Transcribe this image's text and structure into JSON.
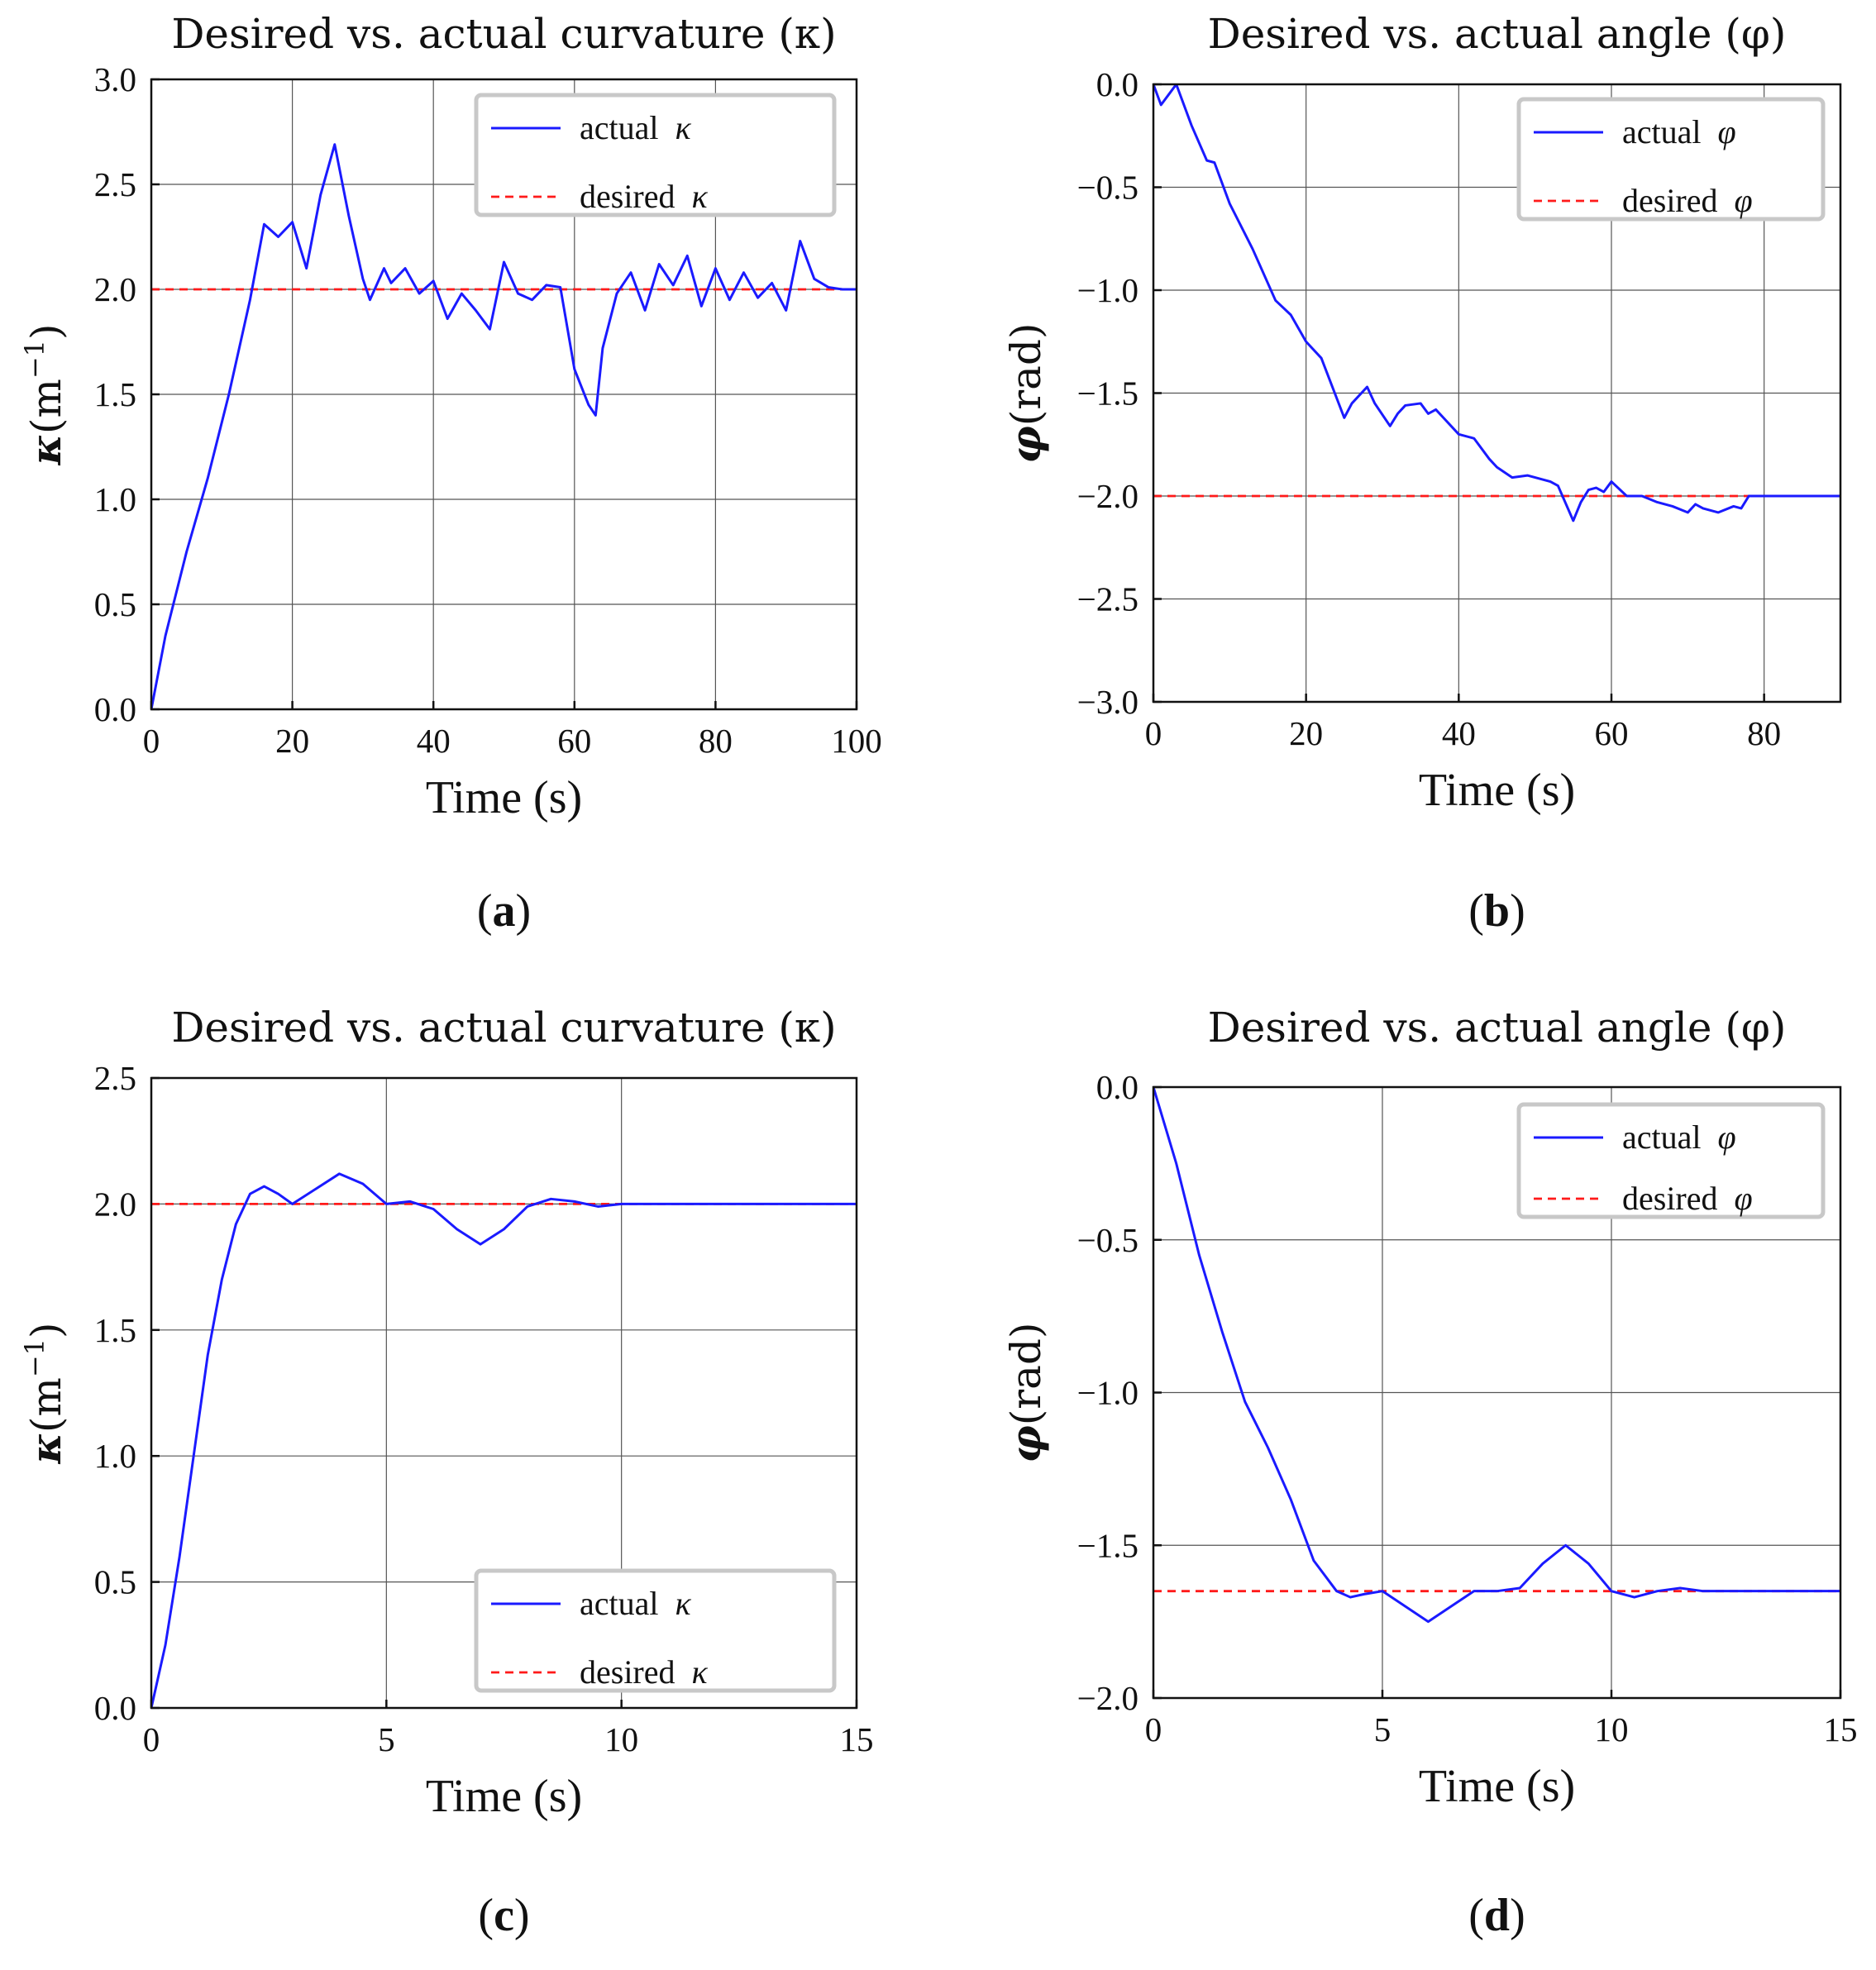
{
  "chart_data": [
    {
      "id": "a",
      "type": "line",
      "caption": "a",
      "title": "Desired vs. actual curvature (κ)",
      "xlabel": "Time (s)",
      "ylabel_symbol": "κ",
      "ylabel_unit": "(m",
      "ylabel_sup": "−1",
      "ylabel_close": ")",
      "xlim": [
        0,
        100
      ],
      "ylim": [
        0.0,
        3.0
      ],
      "xticks": [
        0,
        20,
        40,
        60,
        80,
        100
      ],
      "xtick_labels": [
        "0",
        "20",
        "40",
        "60",
        "80",
        "100"
      ],
      "yticks": [
        0.0,
        0.5,
        1.0,
        1.5,
        2.0,
        2.5,
        3.0
      ],
      "ytick_labels": [
        "0.0",
        "0.5",
        "1.0",
        "1.5",
        "2.0",
        "2.5",
        "3.0"
      ],
      "grid": true,
      "legend": {
        "position": "top-right",
        "entries": [
          {
            "label": "actual ",
            "symbol": "κ"
          },
          {
            "label": "desired ",
            "symbol": "κ"
          }
        ]
      },
      "series": [
        {
          "name": "actual κ",
          "x": [
            0,
            2,
            5,
            8,
            11,
            14,
            16,
            18,
            20,
            22,
            24,
            26,
            28,
            30,
            31,
            33,
            34,
            36,
            38,
            40,
            42,
            44,
            46,
            48,
            50,
            52,
            54,
            56,
            58,
            60,
            62,
            63,
            64,
            66,
            68,
            70,
            72,
            74,
            76,
            78,
            80,
            82,
            84,
            86,
            88,
            90,
            92,
            94,
            96,
            98,
            100
          ],
          "y": [
            0.0,
            0.35,
            0.75,
            1.1,
            1.5,
            1.95,
            2.31,
            2.25,
            2.32,
            2.1,
            2.45,
            2.69,
            2.35,
            2.05,
            1.95,
            2.1,
            2.03,
            2.1,
            1.98,
            2.04,
            1.86,
            1.98,
            1.9,
            1.81,
            2.13,
            1.98,
            1.95,
            2.02,
            2.01,
            1.62,
            1.45,
            1.4,
            1.72,
            1.98,
            2.08,
            1.9,
            2.12,
            2.02,
            2.16,
            1.92,
            2.1,
            1.95,
            2.08,
            1.96,
            2.03,
            1.9,
            2.23,
            2.05,
            2.01,
            2.0,
            2.0
          ]
        },
        {
          "name": "desired κ",
          "x": [
            0,
            100
          ],
          "y": [
            2.0,
            2.0
          ]
        }
      ]
    },
    {
      "id": "b",
      "type": "line",
      "caption": "b",
      "title": "Desired vs. actual angle (φ)",
      "xlabel": "Time (s)",
      "ylabel_symbol": "φ",
      "ylabel_unit": "(rad)",
      "xlim": [
        0,
        90
      ],
      "ylim": [
        -3.0,
        0.0
      ],
      "xticks": [
        0,
        20,
        40,
        60,
        80
      ],
      "xtick_labels": [
        "0",
        "20",
        "40",
        "60",
        "80"
      ],
      "yticks": [
        0.0,
        -0.5,
        -1.0,
        -1.5,
        -2.0,
        -2.5,
        -3.0
      ],
      "ytick_labels": [
        "0.0",
        "−0.5",
        "−1.0",
        "−1.5",
        "−2.0",
        "−2.5",
        "−3.0"
      ],
      "grid": true,
      "legend": {
        "position": "top-right",
        "entries": [
          {
            "label": "actual ",
            "symbol": "φ"
          },
          {
            "label": "desired ",
            "symbol": "φ"
          }
        ]
      },
      "series": [
        {
          "name": "actual φ",
          "x": [
            0,
            1,
            2,
            3,
            5,
            7,
            8,
            10,
            13,
            16,
            18,
            20,
            22,
            25,
            26,
            28,
            29,
            31,
            32,
            33,
            35,
            36,
            37,
            38,
            40,
            42,
            44,
            45,
            47,
            49,
            51,
            52,
            53,
            55,
            56,
            57,
            58,
            59,
            60,
            62,
            64,
            66,
            68,
            70,
            71,
            72,
            74,
            76,
            77,
            78,
            80,
            85,
            90
          ],
          "y": [
            0.0,
            -0.1,
            -0.05,
            0.0,
            -0.2,
            -0.37,
            -0.38,
            -0.58,
            -0.8,
            -1.05,
            -1.12,
            -1.25,
            -1.33,
            -1.62,
            -1.55,
            -1.47,
            -1.55,
            -1.66,
            -1.6,
            -1.56,
            -1.55,
            -1.6,
            -1.58,
            -1.62,
            -1.7,
            -1.72,
            -1.82,
            -1.86,
            -1.91,
            -1.9,
            -1.92,
            -1.93,
            -1.95,
            -2.12,
            -2.03,
            -1.97,
            -1.96,
            -1.98,
            -1.93,
            -2.0,
            -2.0,
            -2.03,
            -2.05,
            -2.08,
            -2.04,
            -2.06,
            -2.08,
            -2.05,
            -2.06,
            -2.0,
            -2.0,
            -2.0,
            -2.0
          ]
        },
        {
          "name": "desired φ",
          "x": [
            0,
            90
          ],
          "y": [
            -2.0,
            -2.0
          ]
        }
      ]
    },
    {
      "id": "c",
      "type": "line",
      "caption": "c",
      "title": "Desired vs. actual curvature (κ)",
      "xlabel": "Time (s)",
      "ylabel_symbol": "κ",
      "ylabel_unit": "(m",
      "ylabel_sup": "−1",
      "ylabel_close": ")",
      "xlim": [
        0,
        15
      ],
      "ylim": [
        0.0,
        2.5
      ],
      "xticks": [
        0,
        5,
        10,
        15
      ],
      "xtick_labels": [
        "0",
        "5",
        "10",
        "15"
      ],
      "yticks": [
        0.0,
        0.5,
        1.0,
        1.5,
        2.0,
        2.5
      ],
      "ytick_labels": [
        "0.0",
        "0.5",
        "1.0",
        "1.5",
        "2.0",
        "2.5"
      ],
      "grid": true,
      "legend": {
        "position": "bottom-right",
        "entries": [
          {
            "label": "actual ",
            "symbol": "κ"
          },
          {
            "label": "desired ",
            "symbol": "κ"
          }
        ]
      },
      "series": [
        {
          "name": "actual κ",
          "x": [
            0,
            0.3,
            0.6,
            0.9,
            1.2,
            1.5,
            1.8,
            2.1,
            2.4,
            2.7,
            3.0,
            3.5,
            4.0,
            4.5,
            5.0,
            5.5,
            6.0,
            6.5,
            7.0,
            7.5,
            8.0,
            8.5,
            9.0,
            9.5,
            10.0,
            11,
            12,
            13,
            14,
            15
          ],
          "y": [
            0.0,
            0.25,
            0.6,
            1.0,
            1.4,
            1.7,
            1.92,
            2.04,
            2.07,
            2.04,
            2.0,
            2.06,
            2.12,
            2.08,
            2.0,
            2.01,
            1.98,
            1.9,
            1.84,
            1.9,
            1.99,
            2.02,
            2.01,
            1.99,
            2.0,
            2.0,
            2.0,
            2.0,
            2.0,
            2.0
          ]
        },
        {
          "name": "desired κ",
          "x": [
            0,
            15
          ],
          "y": [
            2.0,
            2.0
          ]
        }
      ]
    },
    {
      "id": "d",
      "type": "line",
      "caption": "d",
      "title": "Desired vs. actual angle (φ)",
      "xlabel": "Time (s)",
      "ylabel_symbol": "φ",
      "ylabel_unit": "(rad)",
      "xlim": [
        0,
        15
      ],
      "ylim": [
        -2.0,
        0.0
      ],
      "xticks": [
        0,
        5,
        10,
        15
      ],
      "xtick_labels": [
        "0",
        "5",
        "10",
        "15"
      ],
      "yticks": [
        0.0,
        -0.5,
        -1.0,
        -1.5,
        -2.0
      ],
      "ytick_labels": [
        "0.0",
        "−0.5",
        "−1.0",
        "−1.5",
        "−2.0"
      ],
      "grid": true,
      "legend": {
        "position": "top-right",
        "entries": [
          {
            "label": "actual ",
            "symbol": "φ"
          },
          {
            "label": "desired ",
            "symbol": "φ"
          }
        ]
      },
      "series": [
        {
          "name": "actual φ",
          "x": [
            0,
            0.5,
            1.0,
            1.5,
            2.0,
            2.5,
            3.0,
            3.5,
            4.0,
            4.3,
            4.6,
            5.0,
            5.5,
            6.0,
            6.5,
            7.0,
            7.5,
            8.0,
            8.5,
            9.0,
            9.5,
            10.0,
            10.5,
            11.0,
            11.5,
            12,
            13,
            14,
            15
          ],
          "y": [
            0.0,
            -0.25,
            -0.55,
            -0.8,
            -1.03,
            -1.18,
            -1.35,
            -1.55,
            -1.65,
            -1.67,
            -1.66,
            -1.65,
            -1.7,
            -1.75,
            -1.7,
            -1.65,
            -1.65,
            -1.64,
            -1.56,
            -1.5,
            -1.56,
            -1.65,
            -1.67,
            -1.65,
            -1.64,
            -1.65,
            -1.65,
            -1.65,
            -1.65
          ]
        },
        {
          "name": "desired φ",
          "x": [
            0,
            15
          ],
          "y": [
            -1.65,
            -1.65
          ]
        }
      ]
    }
  ]
}
